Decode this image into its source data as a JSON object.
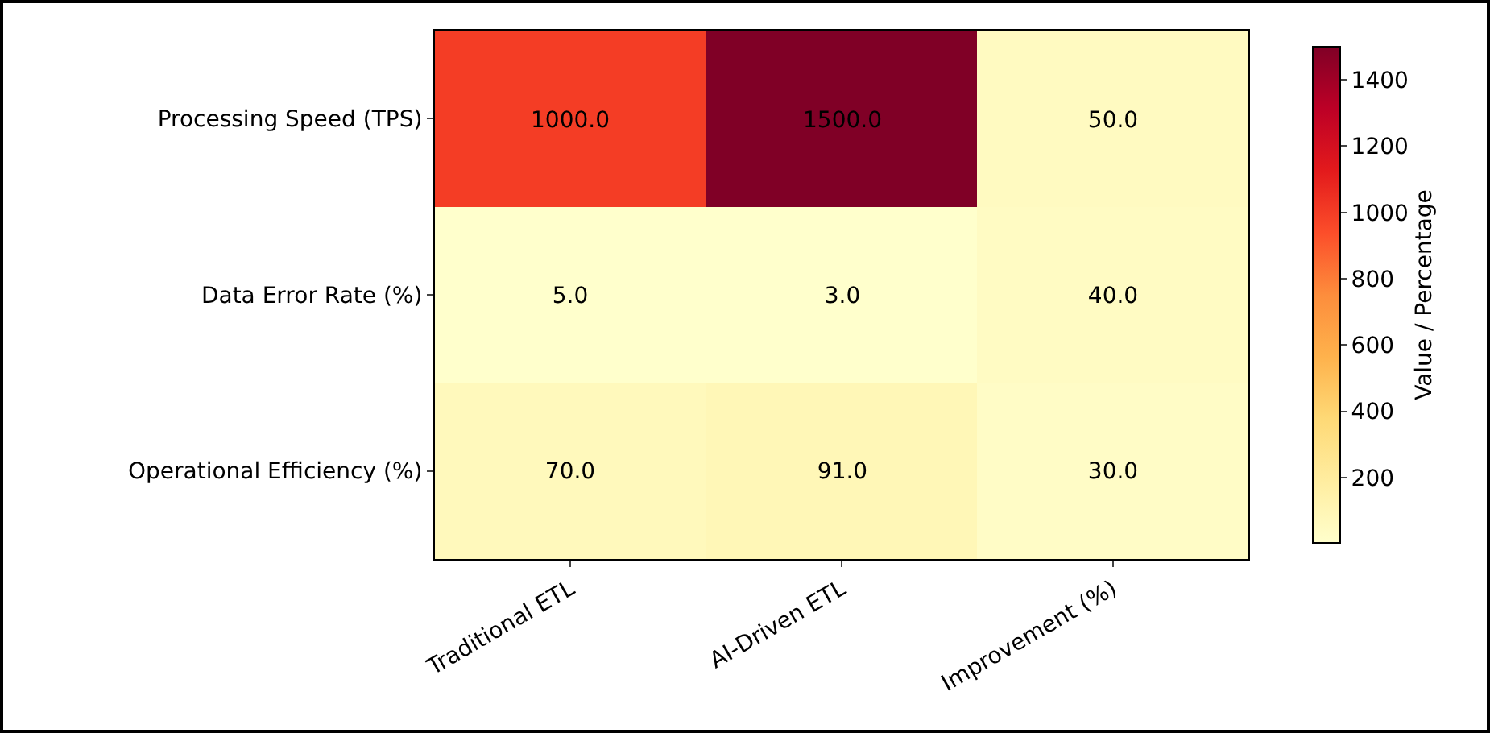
{
  "chart_data": {
    "type": "heatmap",
    "categories": [
      "Traditional ETL",
      "AI-Driven ETL",
      "Improvement (%)"
    ],
    "y_categories": [
      "Processing Speed (TPS)",
      "Data Error Rate (%)",
      "Operational Efficiency (%)"
    ],
    "cells": [
      [
        1000,
        1500,
        50
      ],
      [
        5,
        3,
        40
      ],
      [
        70,
        91,
        30
      ]
    ],
    "cell_labels": [
      [
        "1000.0",
        "1500.0",
        "50.0"
      ],
      [
        "5.0",
        "3.0",
        "40.0"
      ],
      [
        "70.0",
        "91.0",
        "30.0"
      ]
    ],
    "clabel": "Value / Percentage",
    "clim": [
      3,
      1500
    ],
    "cticks": [
      200,
      400,
      600,
      800,
      1000,
      1200,
      1400
    ]
  }
}
